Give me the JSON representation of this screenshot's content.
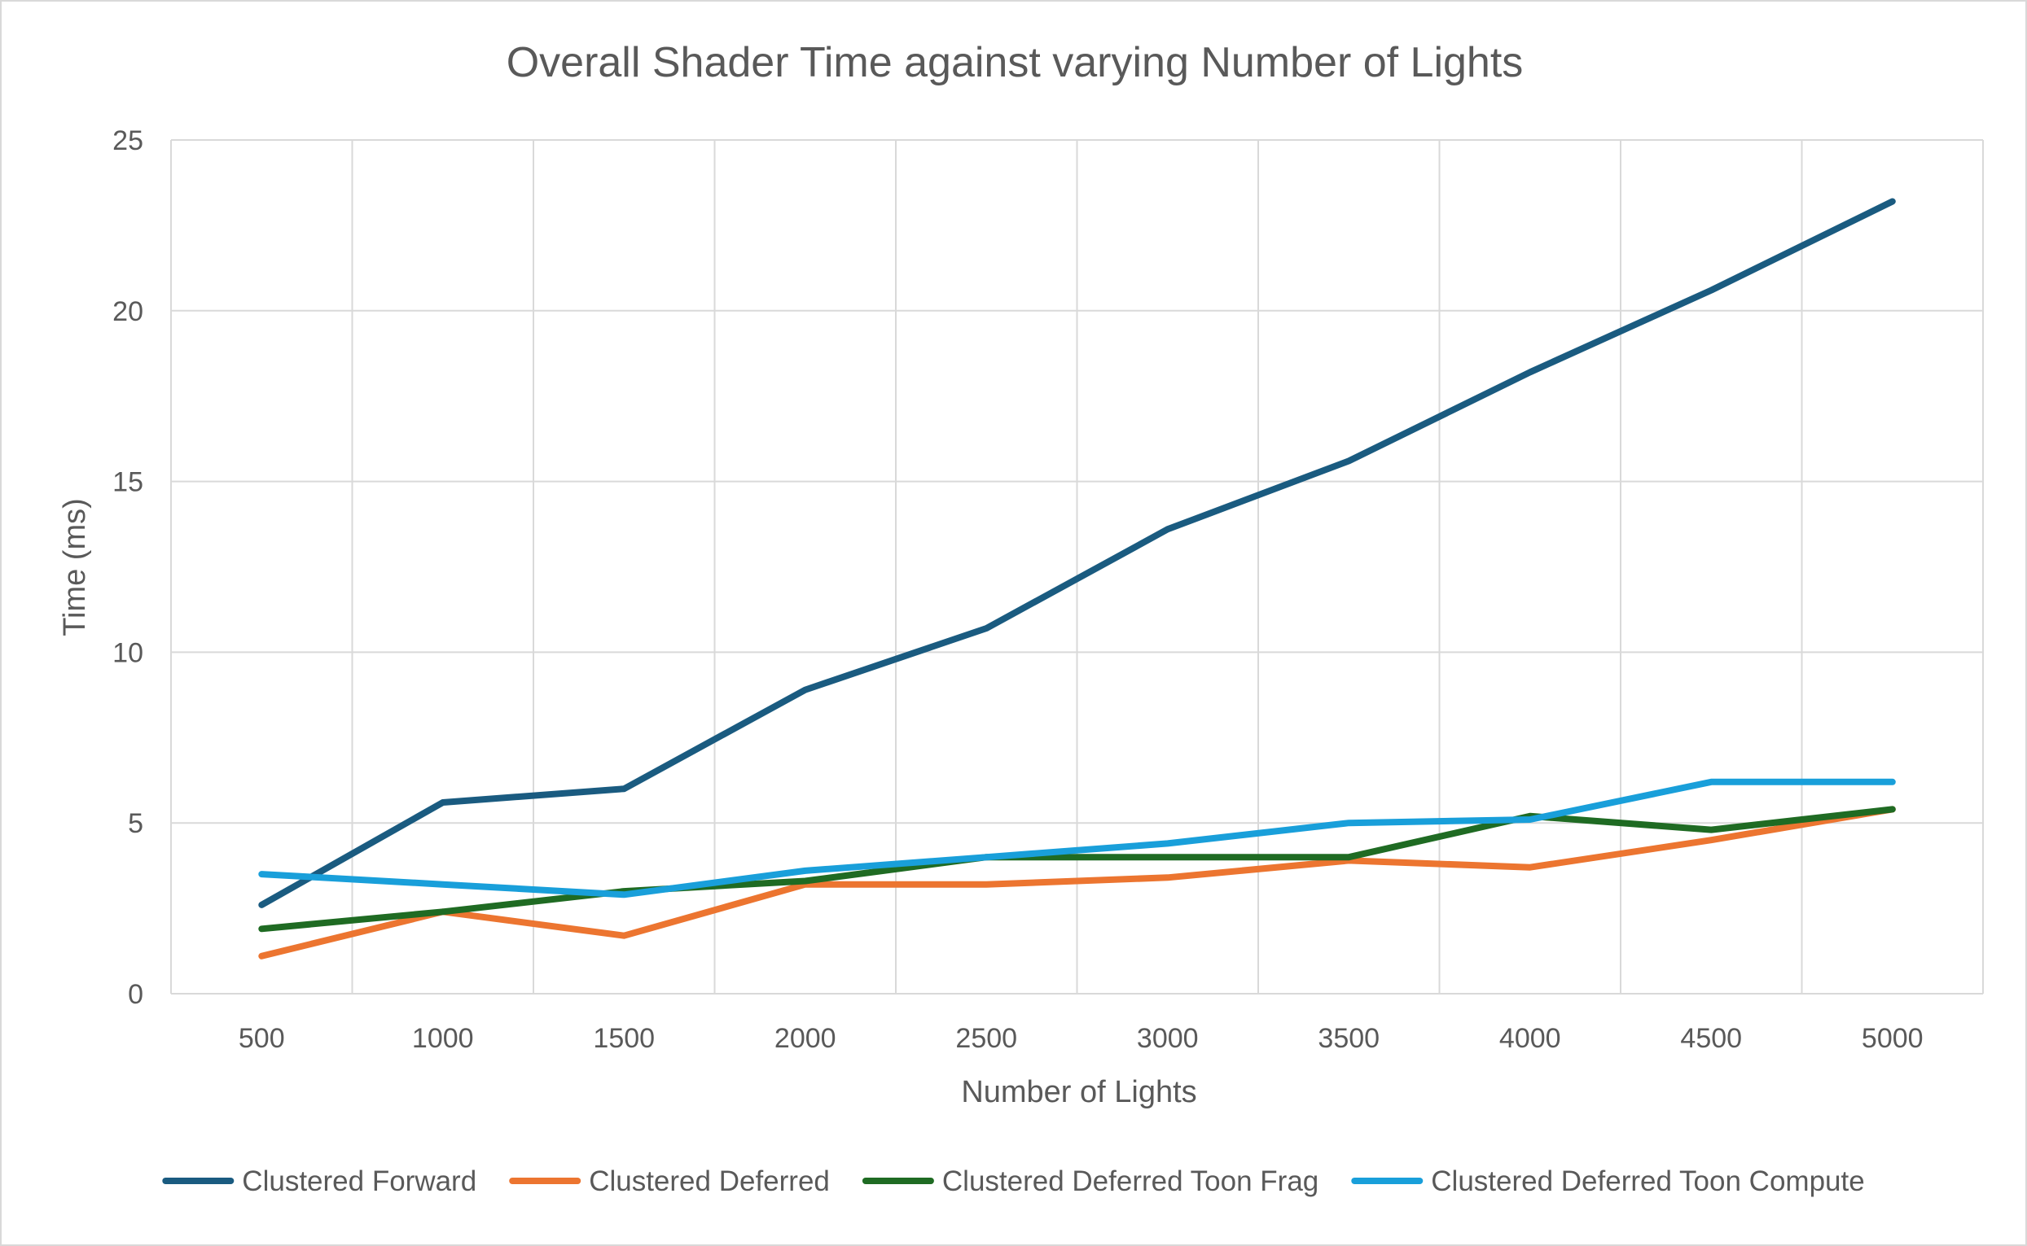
{
  "chart_data": {
    "type": "line",
    "title": "Overall Shader Time against varying Number of Lights",
    "xlabel": "Number of Lights",
    "ylabel": "Time (ms)",
    "categories": [
      "500",
      "1000",
      "1500",
      "2000",
      "2500",
      "3000",
      "3500",
      "4000",
      "4500",
      "5000"
    ],
    "ylim": [
      0,
      25
    ],
    "yticks": [
      "0",
      "5",
      "10",
      "15",
      "20",
      "25"
    ],
    "grid": true,
    "legend_position": "bottom",
    "series": [
      {
        "name": "Clustered Forward",
        "color": "#1a5b80",
        "values": [
          2.6,
          5.6,
          6.0,
          8.9,
          10.7,
          13.6,
          15.6,
          18.2,
          20.6,
          23.2
        ]
      },
      {
        "name": "Clustered Deferred",
        "color": "#ec7530",
        "values": [
          1.1,
          2.4,
          1.7,
          3.2,
          3.2,
          3.4,
          3.9,
          3.7,
          4.5,
          5.4
        ]
      },
      {
        "name": "Clustered Deferred Toon Frag",
        "color": "#1f6b23",
        "values": [
          1.9,
          2.4,
          3.0,
          3.3,
          4.0,
          4.0,
          4.0,
          5.2,
          4.8,
          5.4
        ]
      },
      {
        "name": "Clustered Deferred Toon Compute",
        "color": "#199fda",
        "values": [
          3.5,
          3.2,
          2.9,
          3.6,
          4.0,
          4.4,
          5.0,
          5.1,
          6.2,
          6.2
        ]
      }
    ]
  }
}
